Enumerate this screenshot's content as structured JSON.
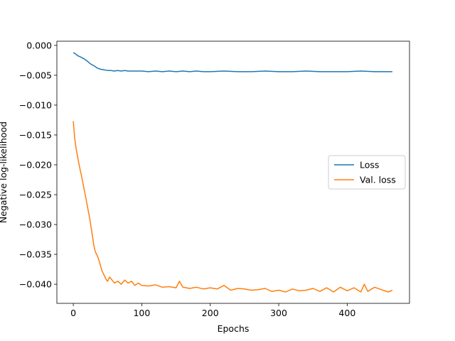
{
  "chart_data": {
    "type": "line",
    "title": "",
    "xlabel": "Epochs",
    "ylabel": "Negative log-likelihood",
    "xlim": [
      -24,
      491
    ],
    "ylim": [
      -0.0432,
      0.0007
    ],
    "xticks": [
      0,
      100,
      200,
      300,
      400
    ],
    "xtick_labels": [
      "0",
      "100",
      "200",
      "300",
      "400"
    ],
    "yticks": [
      0.0,
      -0.005,
      -0.01,
      -0.015,
      -0.02,
      -0.025,
      -0.03,
      -0.035,
      -0.04
    ],
    "ytick_labels": [
      "0.000",
      "−0.005",
      "−0.010",
      "−0.015",
      "−0.020",
      "−0.025",
      "−0.030",
      "−0.035",
      "−0.040"
    ],
    "grid": false,
    "legend": "center-right",
    "series": [
      {
        "name": "Loss",
        "color": "#1f77b4",
        "x": [
          0,
          3,
          6,
          10,
          15,
          20,
          25,
          30,
          35,
          40,
          45,
          50,
          55,
          60,
          65,
          70,
          75,
          80,
          90,
          100,
          110,
          120,
          130,
          140,
          150,
          160,
          170,
          180,
          190,
          200,
          220,
          240,
          260,
          280,
          300,
          320,
          340,
          360,
          380,
          400,
          420,
          440,
          466
        ],
        "y": [
          -0.0012,
          -0.0014,
          -0.0017,
          -0.0019,
          -0.0022,
          -0.0026,
          -0.0031,
          -0.0034,
          -0.0038,
          -0.004,
          -0.0041,
          -0.0042,
          -0.0042,
          -0.0043,
          -0.0042,
          -0.0043,
          -0.0042,
          -0.0043,
          -0.0043,
          -0.0043,
          -0.0044,
          -0.0043,
          -0.0044,
          -0.0043,
          -0.0044,
          -0.0043,
          -0.0044,
          -0.0043,
          -0.0044,
          -0.0044,
          -0.0043,
          -0.0044,
          -0.0044,
          -0.0043,
          -0.0044,
          -0.0044,
          -0.0043,
          -0.0044,
          -0.0044,
          -0.0044,
          -0.0043,
          -0.0044,
          -0.0044
        ]
      },
      {
        "name": "Val. loss",
        "color": "#ff7f0e",
        "x": [
          0,
          2,
          4,
          6,
          8,
          10,
          12,
          14,
          16,
          18,
          20,
          22,
          24,
          26,
          28,
          30,
          32,
          34,
          36,
          38,
          40,
          42,
          45,
          48,
          50,
          53,
          56,
          60,
          65,
          70,
          75,
          80,
          85,
          90,
          95,
          100,
          110,
          120,
          130,
          140,
          150,
          155,
          160,
          170,
          180,
          190,
          200,
          210,
          220,
          230,
          240,
          250,
          260,
          270,
          280,
          290,
          300,
          310,
          320,
          330,
          340,
          350,
          360,
          370,
          380,
          390,
          400,
          410,
          420,
          425,
          430,
          440,
          450,
          460,
          466
        ],
        "y": [
          -0.0127,
          -0.0155,
          -0.0172,
          -0.0185,
          -0.0197,
          -0.0208,
          -0.0219,
          -0.023,
          -0.0242,
          -0.0254,
          -0.0266,
          -0.0278,
          -0.029,
          -0.0305,
          -0.032,
          -0.0335,
          -0.0345,
          -0.035,
          -0.0355,
          -0.0362,
          -0.037,
          -0.0378,
          -0.0385,
          -0.0392,
          -0.0395,
          -0.0388,
          -0.0392,
          -0.0398,
          -0.0395,
          -0.04,
          -0.0393,
          -0.0398,
          -0.0395,
          -0.0402,
          -0.0398,
          -0.0402,
          -0.0403,
          -0.0401,
          -0.0405,
          -0.0404,
          -0.0406,
          -0.0395,
          -0.0405,
          -0.0407,
          -0.0405,
          -0.0408,
          -0.0406,
          -0.0408,
          -0.0402,
          -0.041,
          -0.0407,
          -0.0408,
          -0.041,
          -0.0409,
          -0.0407,
          -0.0412,
          -0.041,
          -0.0413,
          -0.0408,
          -0.0411,
          -0.041,
          -0.0407,
          -0.0412,
          -0.0406,
          -0.0413,
          -0.0405,
          -0.0411,
          -0.0406,
          -0.0413,
          -0.04,
          -0.0412,
          -0.0405,
          -0.0409,
          -0.0413,
          -0.041
        ]
      }
    ]
  }
}
